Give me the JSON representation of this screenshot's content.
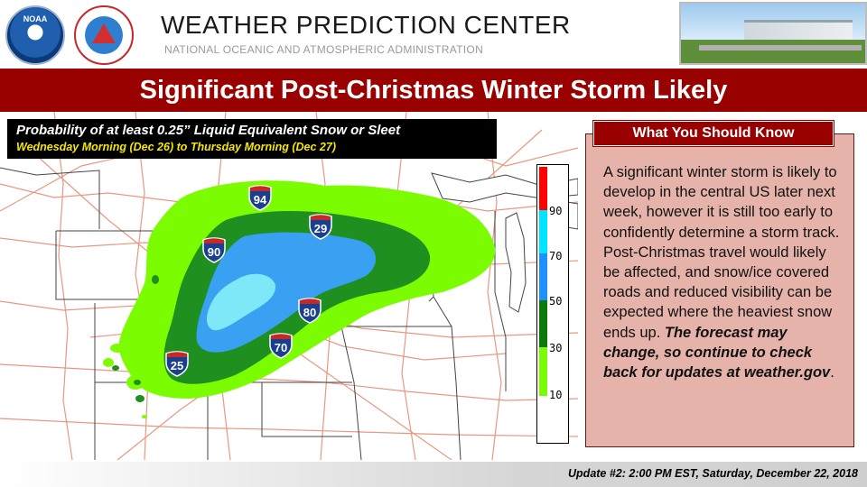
{
  "header": {
    "title": "WEATHER PREDICTION CENTER",
    "subtitle": "NATIONAL OCEANIC AND ATMOSPHERIC ADMINISTRATION",
    "noaa_logo_text": "NOAA"
  },
  "banner": {
    "title": "Significant Post-Christmas Winter Storm Likely"
  },
  "map": {
    "legend_line1": "Probability of at least 0.25” Liquid Equivalent Snow or Sleet",
    "legend_line2": "Wednesday Morning (Dec 26) to Thursday Morning (Dec 27)",
    "interstates": [
      "94",
      "29",
      "90",
      "80",
      "70",
      "25"
    ],
    "colorbar": {
      "labels": [
        "90",
        "70",
        "50",
        "30",
        "10"
      ],
      "colors": [
        "#ff0000",
        "#00e5ff",
        "#1e90ff",
        "#0a7a0a",
        "#7cfc00"
      ]
    },
    "colors": {
      "light_green": "#7cfc00",
      "dark_green": "#1f8f1f",
      "blue": "#3aa0f2",
      "cyan": "#7fe8f8",
      "roads": "#e89880"
    }
  },
  "info": {
    "title": "What You Should Know",
    "body": "A significant winter storm is likely to develop in the central US later next week, however it is still too early to confidently determine a storm track. Post-Christmas travel would likely be affected, and snow/ice covered roads and reduced visibility can be expected where the heaviest snow ends up. ",
    "emphasis": "The forecast may change, so continue to check back for updates at weather.gov",
    "end": "."
  },
  "footer": {
    "update": "Update #2: 2:00 PM EST, Saturday, December 22, 2018"
  }
}
